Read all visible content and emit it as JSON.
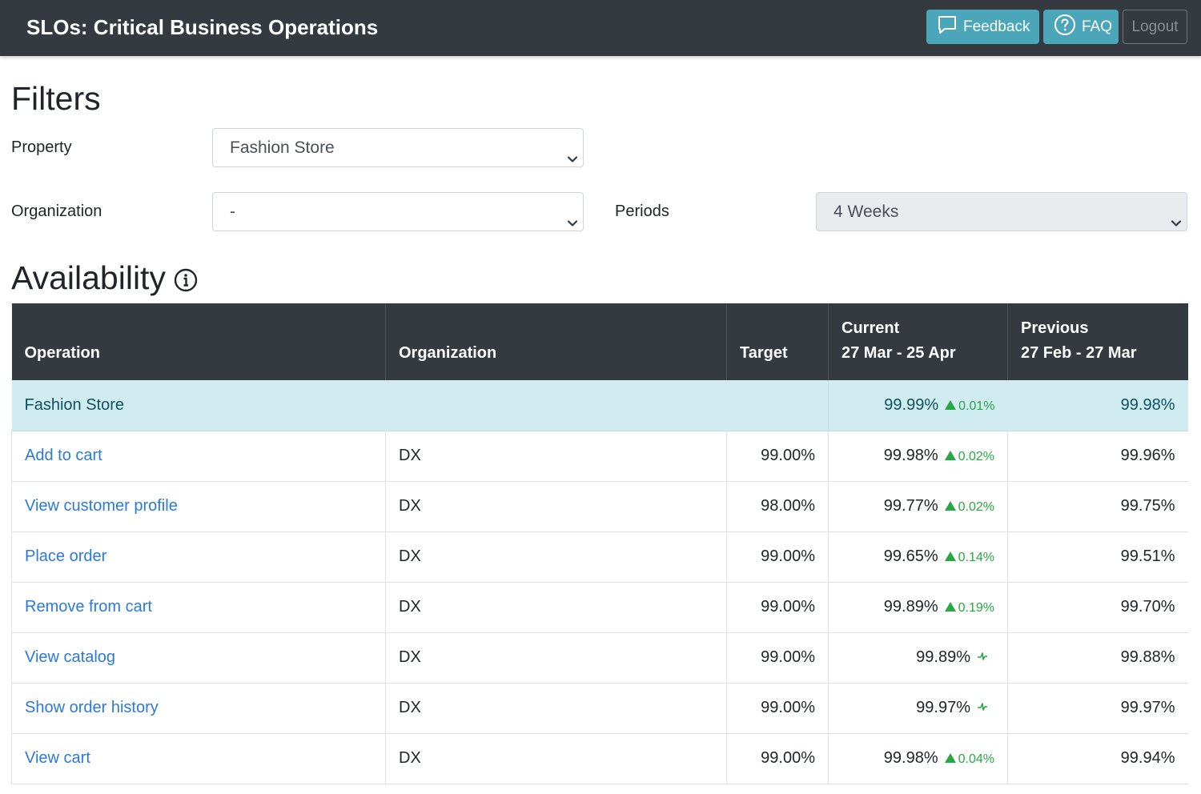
{
  "header": {
    "title": "SLOs: Critical Business Operations",
    "feedback_label": "Feedback",
    "faq_label": "FAQ",
    "logout_label": "Logout"
  },
  "filters": {
    "heading": "Filters",
    "property_label": "Property",
    "property_value": "Fashion Store",
    "organization_label": "Organization",
    "organization_value": "-",
    "periods_label": "Periods",
    "periods_value": "4 Weeks"
  },
  "availability": {
    "heading": "Availability",
    "columns": {
      "operation": "Operation",
      "organization": "Organization",
      "target": "Target",
      "current_title": "Current",
      "current_range": "27 Mar - 25 Apr",
      "previous_title": "Previous",
      "previous_range": "27 Feb - 27 Mar"
    },
    "summary": {
      "name": "Fashion Store",
      "current": "99.99%",
      "delta": "0.01%",
      "previous": "99.98%"
    },
    "rows": [
      {
        "operation": "Add to cart",
        "organization": "DX",
        "target": "99.00%",
        "current": "99.98%",
        "delta": "0.02%",
        "previous": "99.96%"
      },
      {
        "operation": "View customer profile",
        "organization": "DX",
        "target": "98.00%",
        "current": "99.77%",
        "delta": "0.02%",
        "previous": "99.75%"
      },
      {
        "operation": "Place order",
        "organization": "DX",
        "target": "99.00%",
        "current": "99.65%",
        "delta": "0.14%",
        "previous": "99.51%"
      },
      {
        "operation": "Remove from cart",
        "organization": "DX",
        "target": "99.00%",
        "current": "99.89%",
        "delta": "0.19%",
        "previous": "99.70%"
      },
      {
        "operation": "View catalog",
        "organization": "DX",
        "target": "99.00%",
        "current": "99.89%",
        "delta": "",
        "previous": "99.88%"
      },
      {
        "operation": "Show order history",
        "organization": "DX",
        "target": "99.00%",
        "current": "99.97%",
        "delta": "",
        "previous": "99.97%"
      },
      {
        "operation": "View cart",
        "organization": "DX",
        "target": "99.00%",
        "current": "99.98%",
        "delta": "0.04%",
        "previous": "99.94%"
      }
    ]
  },
  "colors": {
    "navbar": "#343a40",
    "info_button": "#4aa6b8",
    "summary_row": "#d1ecf1",
    "link": "#2a7ad9",
    "positive": "#28a745"
  },
  "icons": {
    "feedback": "chat-bubble-icon",
    "faq": "question-circle-icon",
    "availability_info": "info-circle-icon",
    "delta_up": "triangle-up-icon",
    "flat_trend": "pulse-icon",
    "select": "chevron-down-icon"
  }
}
